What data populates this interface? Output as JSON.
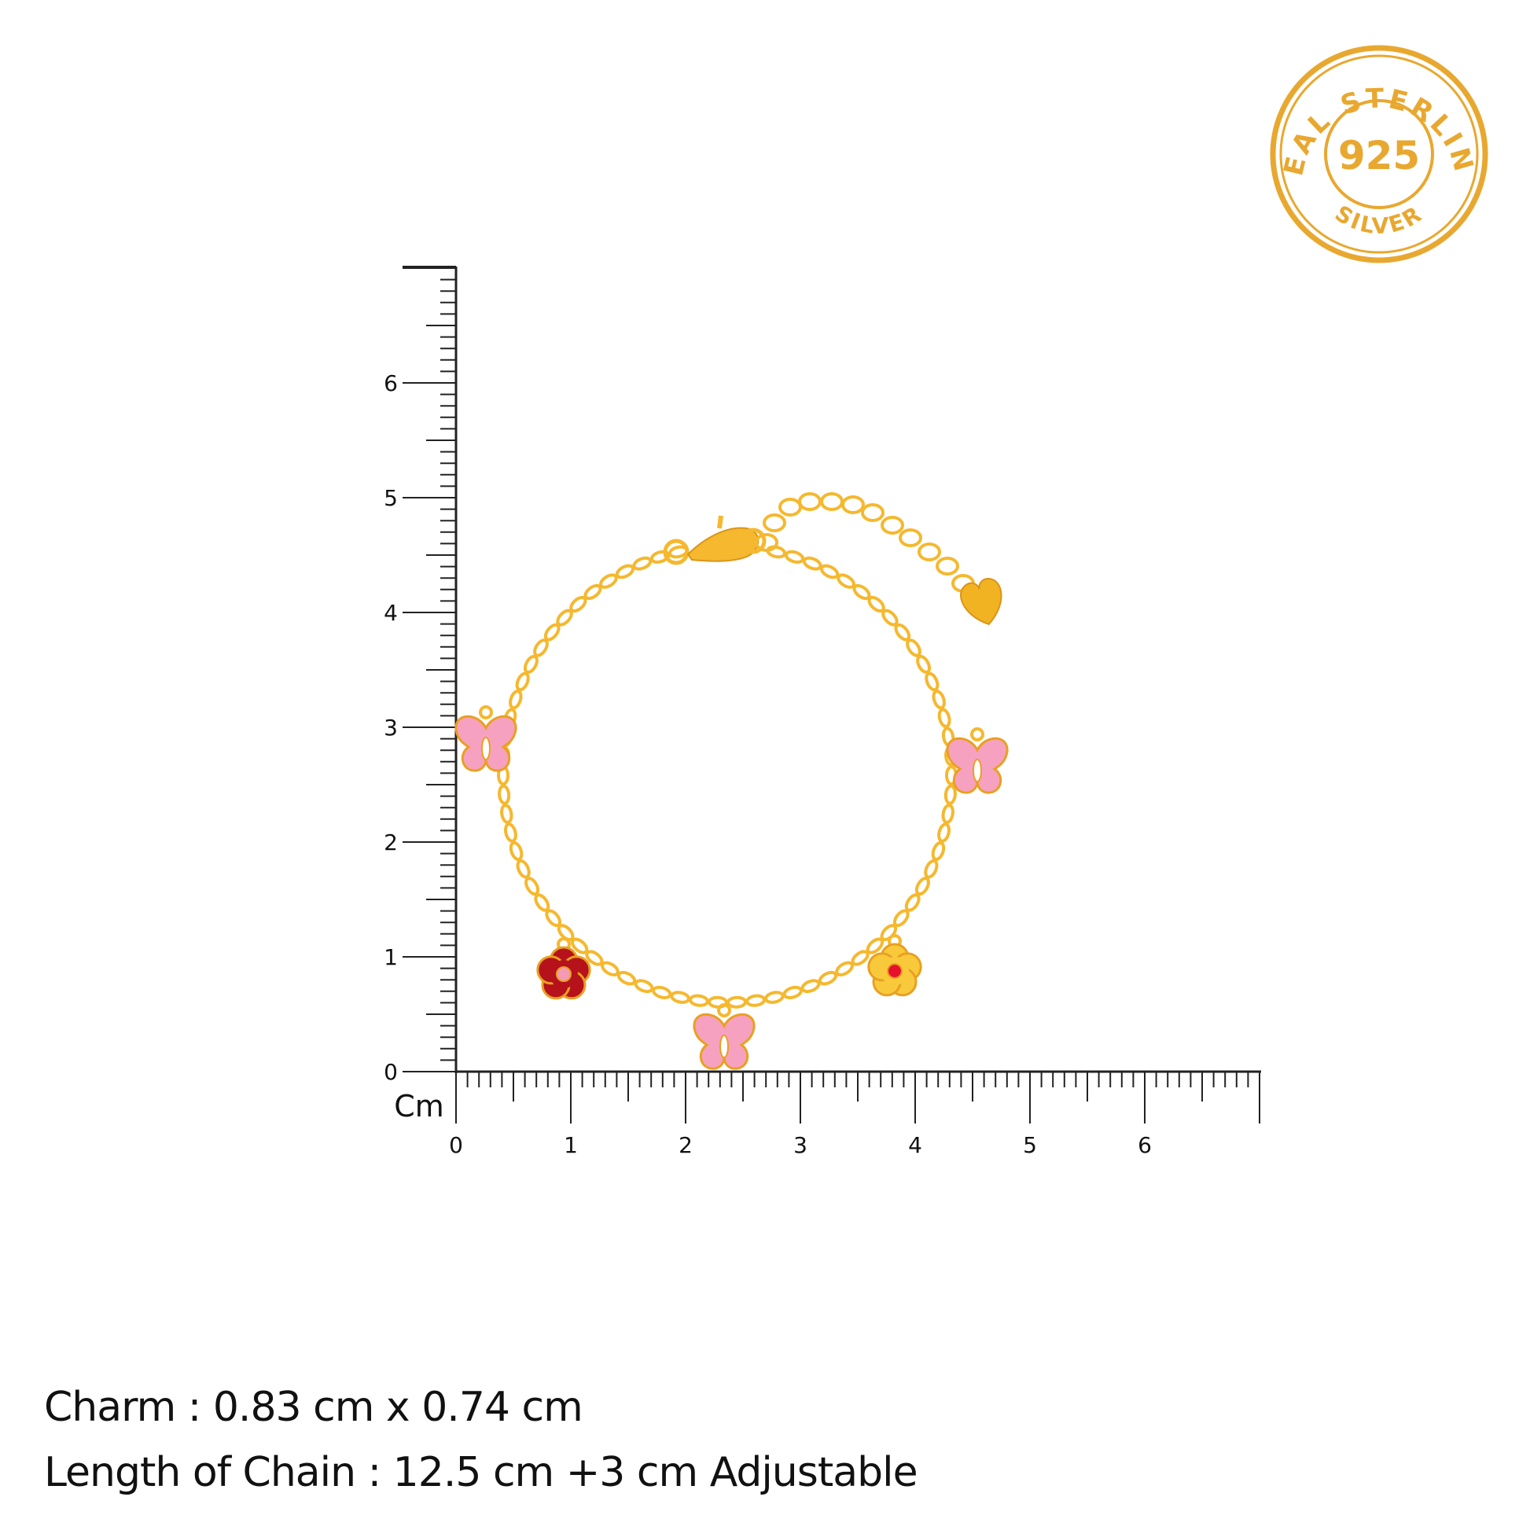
{
  "seal": {
    "top_text": "REAL STERLING",
    "center_text": "925",
    "bottom_text": "SILVER",
    "color": "#E8A830"
  },
  "ruler": {
    "unit": "Cm",
    "x_labels": [
      "0",
      "1",
      "2",
      "3",
      "4",
      "5",
      "6"
    ],
    "y_labels": [
      "0",
      "1",
      "2",
      "3",
      "4",
      "5",
      "6"
    ],
    "max_cm": 7,
    "color": "#222222"
  },
  "product": {
    "chain_color": "#F5B82E",
    "charms": [
      {
        "type": "butterfly",
        "color": "#F7A1C0"
      },
      {
        "type": "flower",
        "color": "#B5121B",
        "center": "#F49AB5"
      },
      {
        "type": "butterfly",
        "color": "#F7A1C0"
      },
      {
        "type": "flower",
        "color": "#F9C93C",
        "center": "#E8112D"
      },
      {
        "type": "butterfly",
        "color": "#F7A1C0"
      },
      {
        "type": "heart",
        "color": "#F2B323"
      }
    ]
  },
  "specs": {
    "charm": "Charm : 0.83 cm x 0.74 cm",
    "chain_length": "Length of Chain : 12.5 cm +3 cm Adjustable"
  }
}
